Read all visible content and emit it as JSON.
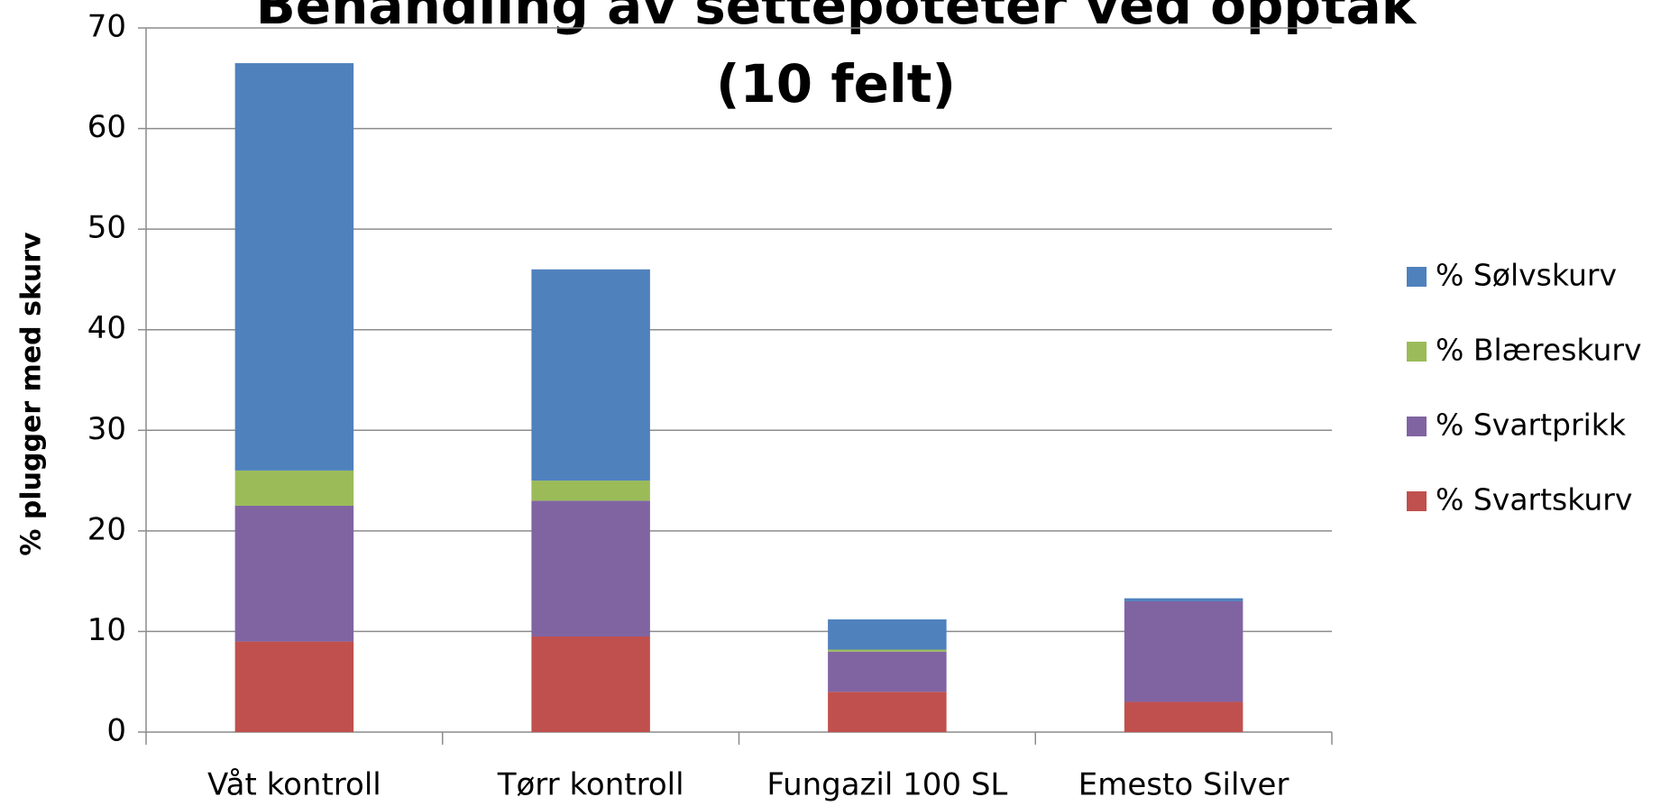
{
  "chart_data": {
    "type": "stacked_bar",
    "title": [
      "Behandling av settepoteter ved opptak",
      "(10 felt)"
    ],
    "y_label": "% plugger med skurv",
    "categories": [
      "Våt kontroll",
      "Tørr kontroll",
      "Fungazil 100 SL",
      "Emesto Silver"
    ],
    "series": [
      {
        "name": "% Svartskurv",
        "color": "#c0504d",
        "values": [
          9,
          9.5,
          4,
          3
        ]
      },
      {
        "name": "% Svartprikk",
        "color": "#8064a2",
        "values": [
          13.5,
          13.5,
          4,
          10
        ]
      },
      {
        "name": "% Blæreskurv",
        "color": "#9bbb59",
        "values": [
          3.5,
          2,
          0.2,
          0
        ]
      },
      {
        "name": "% Sølvskurv",
        "color": "#4f81bd",
        "values": [
          40.5,
          21,
          3,
          0.3
        ]
      }
    ],
    "ylim": [
      0,
      70
    ],
    "yticks": [
      0,
      10,
      20,
      30,
      40,
      50,
      60,
      70
    ],
    "grid": true,
    "legend": "right"
  }
}
